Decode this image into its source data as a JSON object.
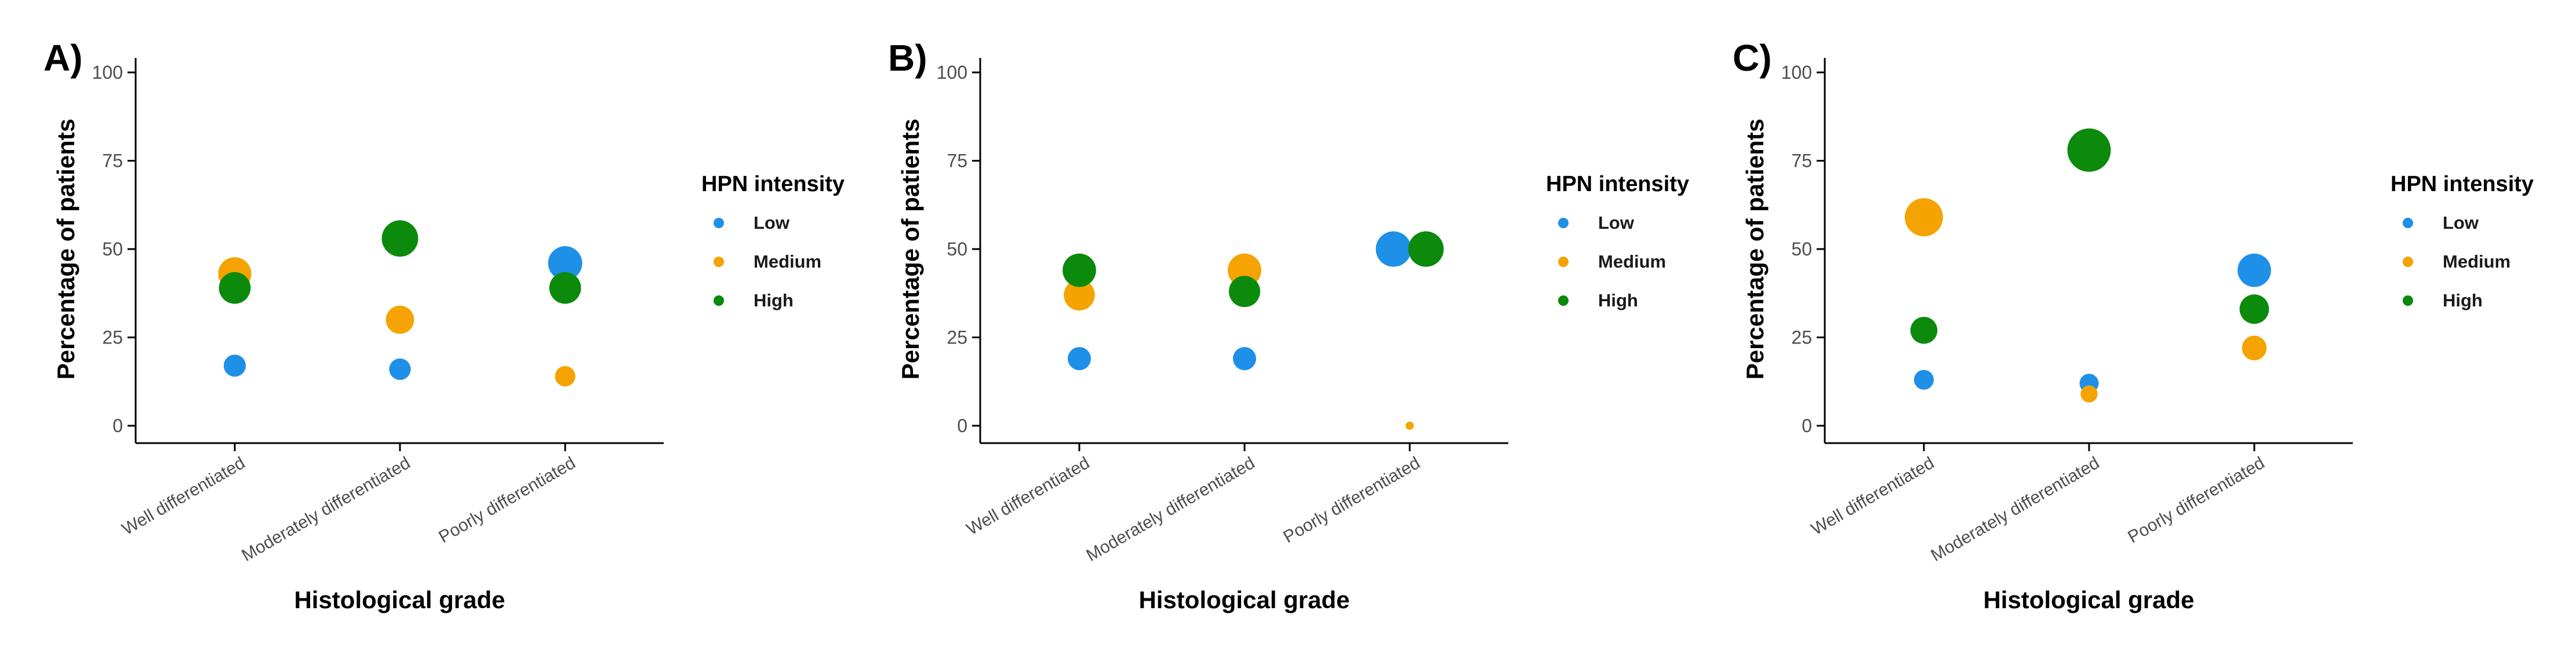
{
  "chart_data": [
    {
      "type": "scatter",
      "panel_label": "A)",
      "categories": [
        "Well differentiated",
        "Moderately differentiated",
        "Poorly differentiated"
      ],
      "xlabel": "Histological grade",
      "ylabel": "Percentage of patients",
      "ylim": [
        0,
        100
      ],
      "yticks": [
        0,
        25,
        50,
        75,
        100
      ],
      "legend_title": "HPN intensity",
      "legend_position": "right",
      "grid": false,
      "series": [
        {
          "name": "Low",
          "color": "#1E90E8",
          "values": [
            17,
            16,
            46
          ]
        },
        {
          "name": "Medium",
          "color": "#F5A300",
          "values": [
            43,
            30,
            14
          ]
        },
        {
          "name": "High",
          "color": "#0B8A0B",
          "values": [
            39,
            53,
            39
          ]
        }
      ]
    },
    {
      "type": "scatter",
      "panel_label": "B)",
      "categories": [
        "Well differentiated",
        "Moderately differentiated",
        "Poorly differentiated"
      ],
      "xlabel": "Histological grade",
      "ylabel": "Percentage of patients",
      "ylim": [
        0,
        100
      ],
      "yticks": [
        0,
        25,
        50,
        75,
        100
      ],
      "legend_title": "HPN intensity",
      "legend_position": "right",
      "grid": false,
      "series": [
        {
          "name": "Low",
          "color": "#1E90E8",
          "values": [
            19,
            19,
            50
          ]
        },
        {
          "name": "Medium",
          "color": "#F5A300",
          "values": [
            37,
            44,
            0
          ]
        },
        {
          "name": "High",
          "color": "#0B8A0B",
          "values": [
            44,
            38,
            50
          ]
        }
      ]
    },
    {
      "type": "scatter",
      "panel_label": "C)",
      "categories": [
        "Well differentiated",
        "Moderately differentiated",
        "Poorly differentiated"
      ],
      "xlabel": "Histological grade",
      "ylabel": "Percentage of patients",
      "ylim": [
        0,
        100
      ],
      "yticks": [
        0,
        25,
        50,
        75,
        100
      ],
      "legend_title": "HPN intensity",
      "legend_position": "right",
      "grid": false,
      "series": [
        {
          "name": "Low",
          "color": "#1E90E8",
          "values": [
            13,
            12,
            44
          ]
        },
        {
          "name": "Medium",
          "color": "#F5A300",
          "values": [
            59,
            9,
            22
          ]
        },
        {
          "name": "High",
          "color": "#0B8A0B",
          "values": [
            27,
            78,
            33
          ]
        }
      ]
    }
  ]
}
